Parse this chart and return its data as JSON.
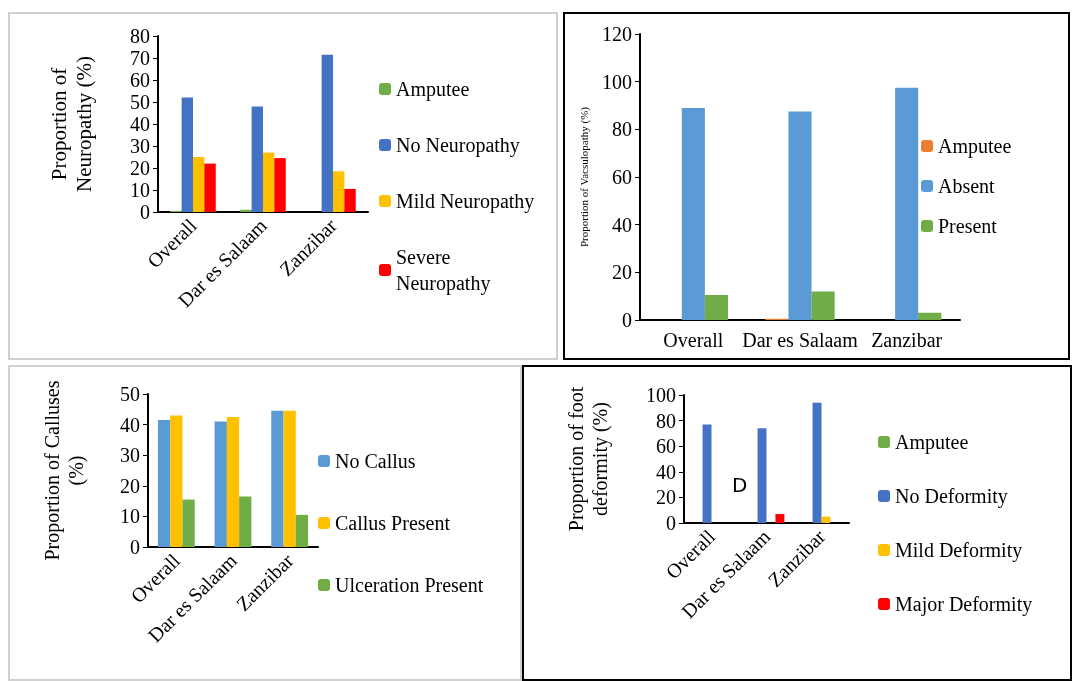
{
  "chart_data": [
    {
      "type": "bar",
      "ylabel": "Proportion of Neuropathy (%)",
      "categories": [
        "Overall",
        "Dar es Salaam",
        "Zanzibar"
      ],
      "ylim": [
        0,
        80
      ],
      "yticks": [
        0,
        10,
        20,
        30,
        40,
        50,
        60,
        70,
        80
      ],
      "legend": "right",
      "series": [
        {
          "name": "Amputee",
          "color": "#70ad47",
          "values": [
            0.5,
            1,
            0
          ]
        },
        {
          "name": "No Neuropathy",
          "color": "#4472c4",
          "values": [
            52,
            48,
            71.5
          ]
        },
        {
          "name": "Mild Neuropathy",
          "color": "#ffc000",
          "values": [
            25,
            27,
            18.5
          ]
        },
        {
          "name": "Severe Neuropathy",
          "color": "#ff0000",
          "values": [
            22,
            24.5,
            10.5
          ]
        }
      ]
    },
    {
      "type": "bar",
      "ylabel": "Proportion of Vacsulopathy (%)",
      "categories": [
        "Overall",
        "Dar es Salaam",
        "Zanzibar"
      ],
      "ylim": [
        0,
        120
      ],
      "yticks": [
        0,
        20,
        40,
        60,
        80,
        100,
        120
      ],
      "legend": "right",
      "series": [
        {
          "name": "Amputee",
          "color": "#ed7d31",
          "values": [
            0,
            0.5,
            0
          ]
        },
        {
          "name": "Absent",
          "color": "#5b9bd5",
          "values": [
            89,
            87.5,
            97.5
          ]
        },
        {
          "name": "Present",
          "color": "#70ad47",
          "values": [
            10.5,
            12,
            3
          ]
        }
      ]
    },
    {
      "type": "bar",
      "ylabel": "Proportion of Calluses (%)",
      "categories": [
        "Overall",
        "Dar es Salaam",
        "Zanzibar"
      ],
      "ylim": [
        0,
        50
      ],
      "yticks": [
        0,
        10,
        20,
        30,
        40,
        50
      ],
      "legend": "right",
      "series": [
        {
          "name": "No Callus",
          "color": "#5b9bd5",
          "values": [
            41.5,
            41,
            44.5
          ]
        },
        {
          "name": "Callus Present",
          "color": "#ffc000",
          "values": [
            43,
            42.5,
            44.5
          ]
        },
        {
          "name": "Ulceration Present",
          "color": "#70ad47",
          "values": [
            15.5,
            16.5,
            10.5
          ]
        }
      ]
    },
    {
      "type": "bar",
      "ylabel": "Proportion of foot deformity (%)",
      "categories": [
        "Overall",
        "Dar es Salaam",
        "Zanzibar"
      ],
      "ylim": [
        0,
        100
      ],
      "yticks": [
        0,
        20,
        40,
        60,
        80,
        100
      ],
      "legend": "right",
      "annotations": [
        "D"
      ],
      "series": [
        {
          "name": "Amputee",
          "color": "#70ad47",
          "values": [
            null,
            null,
            0
          ]
        },
        {
          "name": "No Deformity",
          "color": "#4472c4",
          "values": [
            77,
            74,
            94
          ]
        },
        {
          "name": "Mild Deformity",
          "color": "#ffc000",
          "values": [
            null,
            null,
            5
          ]
        },
        {
          "name": "Major Deformity",
          "color": "#ff0000",
          "values": [
            null,
            7,
            0
          ]
        }
      ]
    }
  ]
}
